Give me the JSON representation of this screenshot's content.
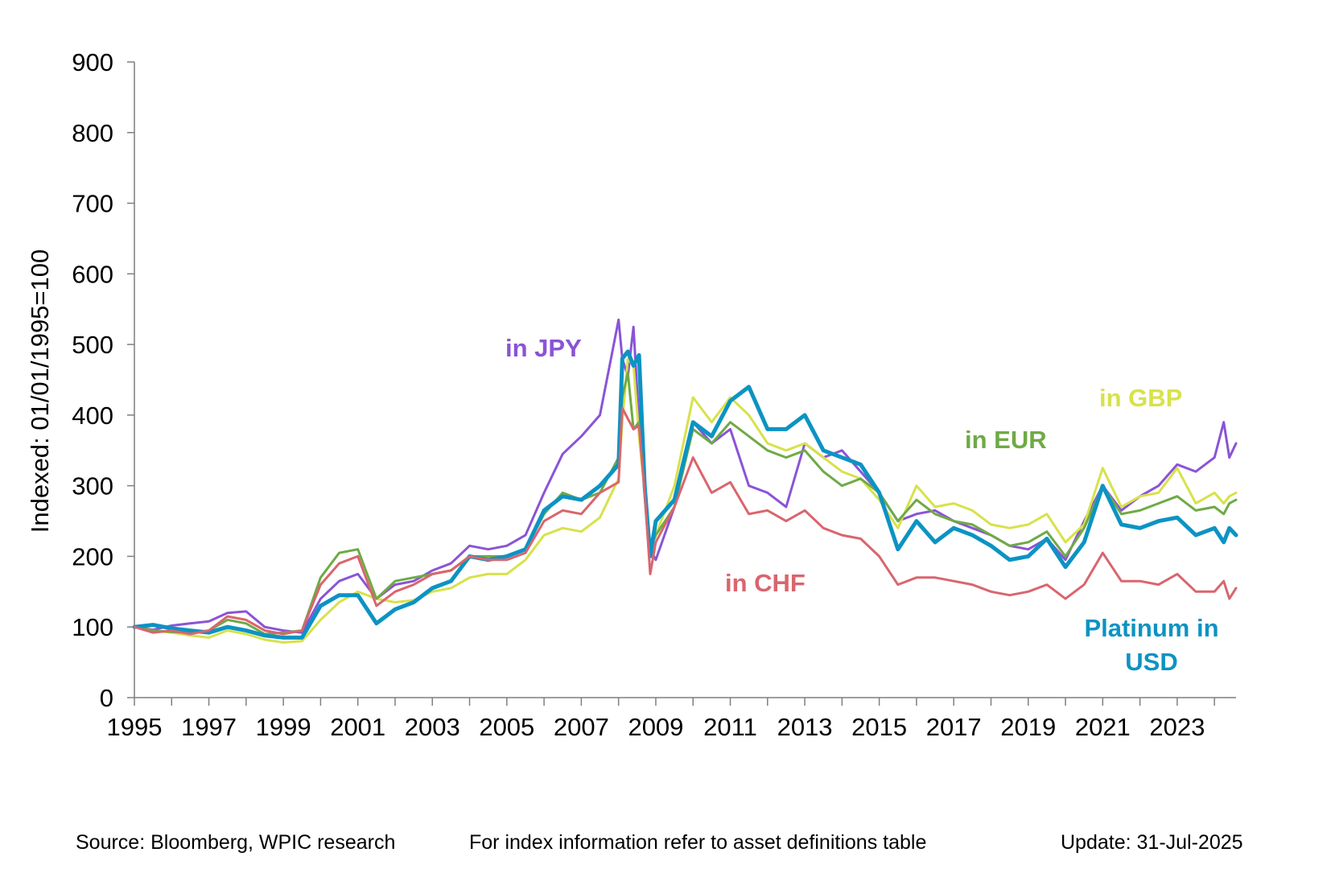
{
  "chart_data": {
    "type": "line",
    "ylabel": "Indexed: 01/01/1995=100",
    "ylim": [
      0,
      900
    ],
    "yticks": [
      0,
      100,
      200,
      300,
      400,
      500,
      600,
      700,
      800,
      900
    ],
    "xlim": [
      1995,
      2024.58
    ],
    "xticks": [
      "1995",
      "1997",
      "1999",
      "2001",
      "2003",
      "2005",
      "2007",
      "2009",
      "2011",
      "2013",
      "2015",
      "2017",
      "2019",
      "2021",
      "2023"
    ],
    "grid": false,
    "series": [
      {
        "name": "in JPY",
        "color": "#8A54D6",
        "width": 3,
        "x": [
          1995,
          1995.5,
          1996,
          1996.5,
          1997,
          1997.5,
          1998,
          1998.5,
          1999,
          1999.5,
          2000,
          2000.5,
          2001,
          2001.5,
          2002,
          2002.5,
          2003,
          2003.5,
          2004,
          2004.5,
          2005,
          2005.5,
          2006,
          2006.5,
          2007,
          2007.5,
          2008,
          2008.1,
          2008.25,
          2008.4,
          2008.55,
          2008.7,
          2008.85,
          2009,
          2009.5,
          2010,
          2010.5,
          2011,
          2011.5,
          2012,
          2012.5,
          2013,
          2013.5,
          2014,
          2014.5,
          2015,
          2015.5,
          2016,
          2016.5,
          2017,
          2017.5,
          2018,
          2018.5,
          2019,
          2019.5,
          2020,
          2020.5,
          2021,
          2021.5,
          2022,
          2022.5,
          2023,
          2023.5,
          2024,
          2024.25,
          2024.4,
          2024.58
        ],
        "y": [
          100,
          96,
          102,
          105,
          108,
          120,
          122,
          100,
          95,
          92,
          140,
          165,
          175,
          140,
          160,
          165,
          180,
          190,
          215,
          210,
          215,
          230,
          290,
          345,
          370,
          400,
          535,
          480,
          455,
          525,
          390,
          300,
          210,
          195,
          270,
          390,
          360,
          380,
          300,
          290,
          270,
          360,
          340,
          350,
          320,
          290,
          250,
          260,
          265,
          250,
          240,
          230,
          215,
          210,
          225,
          195,
          250,
          300,
          265,
          285,
          300,
          330,
          320,
          340,
          390,
          340,
          360
        ]
      },
      {
        "name": "in GBP",
        "color": "#D7E24A",
        "width": 3,
        "x": [
          1995,
          1995.5,
          1996,
          1996.5,
          1997,
          1997.5,
          1998,
          1998.5,
          1999,
          1999.5,
          2000,
          2000.5,
          2001,
          2001.5,
          2002,
          2002.5,
          2003,
          2003.5,
          2004,
          2004.5,
          2005,
          2005.5,
          2006,
          2006.5,
          2007,
          2007.5,
          2008,
          2008.1,
          2008.25,
          2008.4,
          2008.55,
          2008.7,
          2008.85,
          2009,
          2009.5,
          2010,
          2010.5,
          2011,
          2011.5,
          2012,
          2012.5,
          2013,
          2013.5,
          2014,
          2014.5,
          2015,
          2015.5,
          2016,
          2016.5,
          2017,
          2017.5,
          2018,
          2018.5,
          2019,
          2019.5,
          2020,
          2020.5,
          2021,
          2021.5,
          2022,
          2022.5,
          2023,
          2023.5,
          2024,
          2024.25,
          2024.4,
          2024.58
        ],
        "y": [
          100,
          95,
          92,
          88,
          85,
          95,
          90,
          82,
          78,
          80,
          110,
          135,
          150,
          140,
          135,
          138,
          150,
          155,
          170,
          175,
          175,
          195,
          230,
          240,
          235,
          255,
          310,
          390,
          480,
          470,
          370,
          290,
          210,
          230,
          300,
          425,
          390,
          425,
          400,
          360,
          350,
          360,
          340,
          320,
          310,
          280,
          240,
          300,
          270,
          275,
          265,
          245,
          240,
          245,
          260,
          220,
          245,
          325,
          270,
          285,
          290,
          325,
          275,
          290,
          275,
          285,
          290
        ]
      },
      {
        "name": "in EUR",
        "color": "#6FAA46",
        "width": 3,
        "x": [
          1995,
          1995.5,
          1996,
          1996.5,
          1997,
          1997.5,
          1998,
          1998.5,
          1999,
          1999.5,
          2000,
          2000.5,
          2001,
          2001.5,
          2002,
          2002.5,
          2003,
          2003.5,
          2004,
          2004.5,
          2005,
          2005.5,
          2006,
          2006.5,
          2007,
          2007.5,
          2008,
          2008.1,
          2008.25,
          2008.4,
          2008.55,
          2008.7,
          2008.85,
          2009,
          2009.5,
          2010,
          2010.5,
          2011,
          2011.5,
          2012,
          2012.5,
          2013,
          2013.5,
          2014,
          2014.5,
          2015,
          2015.5,
          2016,
          2016.5,
          2017,
          2017.5,
          2018,
          2018.5,
          2019,
          2019.5,
          2020,
          2020.5,
          2021,
          2021.5,
          2022,
          2022.5,
          2023,
          2023.5,
          2024,
          2024.25,
          2024.4,
          2024.58
        ],
        "y": [
          100,
          95,
          93,
          92,
          95,
          110,
          105,
          90,
          92,
          95,
          170,
          205,
          210,
          140,
          165,
          170,
          175,
          180,
          200,
          200,
          200,
          210,
          260,
          290,
          280,
          290,
          340,
          425,
          460,
          380,
          390,
          300,
          210,
          230,
          270,
          380,
          360,
          390,
          370,
          350,
          340,
          350,
          320,
          300,
          310,
          290,
          250,
          280,
          260,
          250,
          245,
          230,
          215,
          220,
          235,
          200,
          240,
          300,
          260,
          265,
          275,
          285,
          265,
          270,
          260,
          275,
          280
        ]
      },
      {
        "name": "Platinum in USD",
        "color": "#0C93C3",
        "width": 5,
        "x": [
          1995,
          1995.5,
          1996,
          1996.5,
          1997,
          1997.5,
          1998,
          1998.5,
          1999,
          1999.5,
          2000,
          2000.5,
          2001,
          2001.5,
          2002,
          2002.5,
          2003,
          2003.5,
          2004,
          2004.5,
          2005,
          2005.5,
          2006,
          2006.5,
          2007,
          2007.5,
          2008,
          2008.1,
          2008.25,
          2008.4,
          2008.55,
          2008.7,
          2008.85,
          2009,
          2009.5,
          2010,
          2010.5,
          2011,
          2011.5,
          2012,
          2012.5,
          2013,
          2013.5,
          2014,
          2014.5,
          2015,
          2015.5,
          2016,
          2016.5,
          2017,
          2017.5,
          2018,
          2018.5,
          2019,
          2019.5,
          2020,
          2020.5,
          2021,
          2021.5,
          2022,
          2022.5,
          2023,
          2023.5,
          2024,
          2024.25,
          2024.4,
          2024.58
        ],
        "y": [
          100,
          103,
          98,
          95,
          92,
          100,
          95,
          88,
          85,
          85,
          130,
          145,
          145,
          105,
          125,
          135,
          155,
          165,
          200,
          195,
          200,
          210,
          265,
          285,
          280,
          300,
          330,
          480,
          490,
          470,
          485,
          300,
          200,
          250,
          280,
          390,
          370,
          420,
          440,
          380,
          380,
          400,
          350,
          340,
          330,
          290,
          210,
          250,
          220,
          240,
          230,
          215,
          195,
          200,
          225,
          185,
          220,
          300,
          245,
          240,
          250,
          255,
          230,
          240,
          220,
          240,
          230
        ]
      },
      {
        "name": "in CHF",
        "color": "#D9656E",
        "width": 3,
        "x": [
          1995,
          1995.5,
          1996,
          1996.5,
          1997,
          1997.5,
          1998,
          1998.5,
          1999,
          1999.5,
          2000,
          2000.5,
          2001,
          2001.5,
          2002,
          2002.5,
          2003,
          2003.5,
          2004,
          2004.5,
          2005,
          2005.5,
          2006,
          2006.5,
          2007,
          2007.5,
          2008,
          2008.1,
          2008.25,
          2008.4,
          2008.55,
          2008.7,
          2008.85,
          2009,
          2009.5,
          2010,
          2010.5,
          2011,
          2011.5,
          2012,
          2012.5,
          2013,
          2013.5,
          2014,
          2014.5,
          2015,
          2015.5,
          2016,
          2016.5,
          2017,
          2017.5,
          2018,
          2018.5,
          2019,
          2019.5,
          2020,
          2020.5,
          2021,
          2021.5,
          2022,
          2022.5,
          2023,
          2023.5,
          2024,
          2024.25,
          2024.4,
          2024.58
        ],
        "y": [
          100,
          92,
          95,
          90,
          95,
          115,
          110,
          95,
          90,
          95,
          160,
          190,
          200,
          130,
          150,
          160,
          175,
          180,
          200,
          195,
          195,
          205,
          250,
          265,
          260,
          290,
          305,
          410,
          395,
          380,
          385,
          290,
          175,
          220,
          270,
          340,
          290,
          305,
          260,
          265,
          250,
          265,
          240,
          230,
          225,
          200,
          160,
          170,
          170,
          165,
          160,
          150,
          145,
          150,
          160,
          140,
          160,
          205,
          165,
          165,
          160,
          175,
          150,
          150,
          165,
          140,
          155
        ]
      }
    ],
    "annotations": [
      {
        "text": "in JPY",
        "series": "in JPY"
      },
      {
        "text": "in GBP",
        "series": "in GBP"
      },
      {
        "text": "in EUR",
        "series": "in EUR"
      },
      {
        "text": "in CHF",
        "series": "in CHF"
      },
      {
        "text": "Platinum in",
        "series": "Platinum in USD"
      },
      {
        "text": "USD",
        "series": "Platinum in USD"
      }
    ]
  },
  "footer": {
    "source": "Source: Bloomberg, WPIC research",
    "note": "For index information refer to asset definitions table",
    "update": "Update: 31-Jul-2025"
  }
}
